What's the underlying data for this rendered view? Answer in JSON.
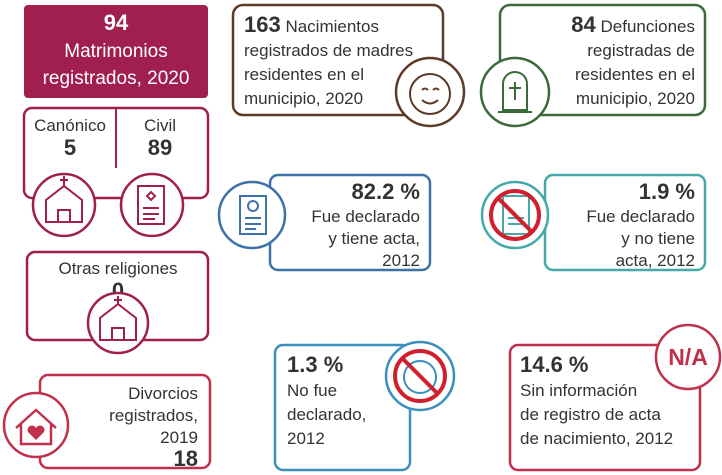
{
  "marriages": {
    "total": "94",
    "lines": [
      "Matrimonios",
      "registrados, 2020"
    ],
    "canonico": {
      "label": "Canónico",
      "value": "5"
    },
    "civil": {
      "label": "Civil",
      "value": "89"
    },
    "otras": {
      "label": "Otras religiones",
      "value": "0"
    }
  },
  "divorces": {
    "lines": [
      "Divorcios",
      "registrados,",
      "2019"
    ],
    "value": "18"
  },
  "births": {
    "value": "163",
    "lines": [
      "Nacimientos",
      "registrados de madres",
      "residentes en el",
      "municipio, 2020"
    ]
  },
  "deaths": {
    "value": "84",
    "lines": [
      "Defunciones",
      "registradas de",
      "residentes en el",
      "municipio, 2020"
    ]
  },
  "declared_with_record": {
    "value": "82.2 %",
    "lines": [
      "Fue declarado",
      "y tiene acta,",
      "2012"
    ]
  },
  "declared_without_record": {
    "value": "1.9 %",
    "lines": [
      "Fue declarado",
      "y no tiene",
      "acta, 2012"
    ]
  },
  "not_declared": {
    "value": "1.3 %",
    "lines": [
      "No fue",
      "declarado,",
      "2012"
    ]
  },
  "no_information": {
    "value": "14.6 %",
    "lines": [
      "Sin información",
      "de registro de acta",
      "de nacimiento, 2012"
    ],
    "badge": "N/A"
  }
}
